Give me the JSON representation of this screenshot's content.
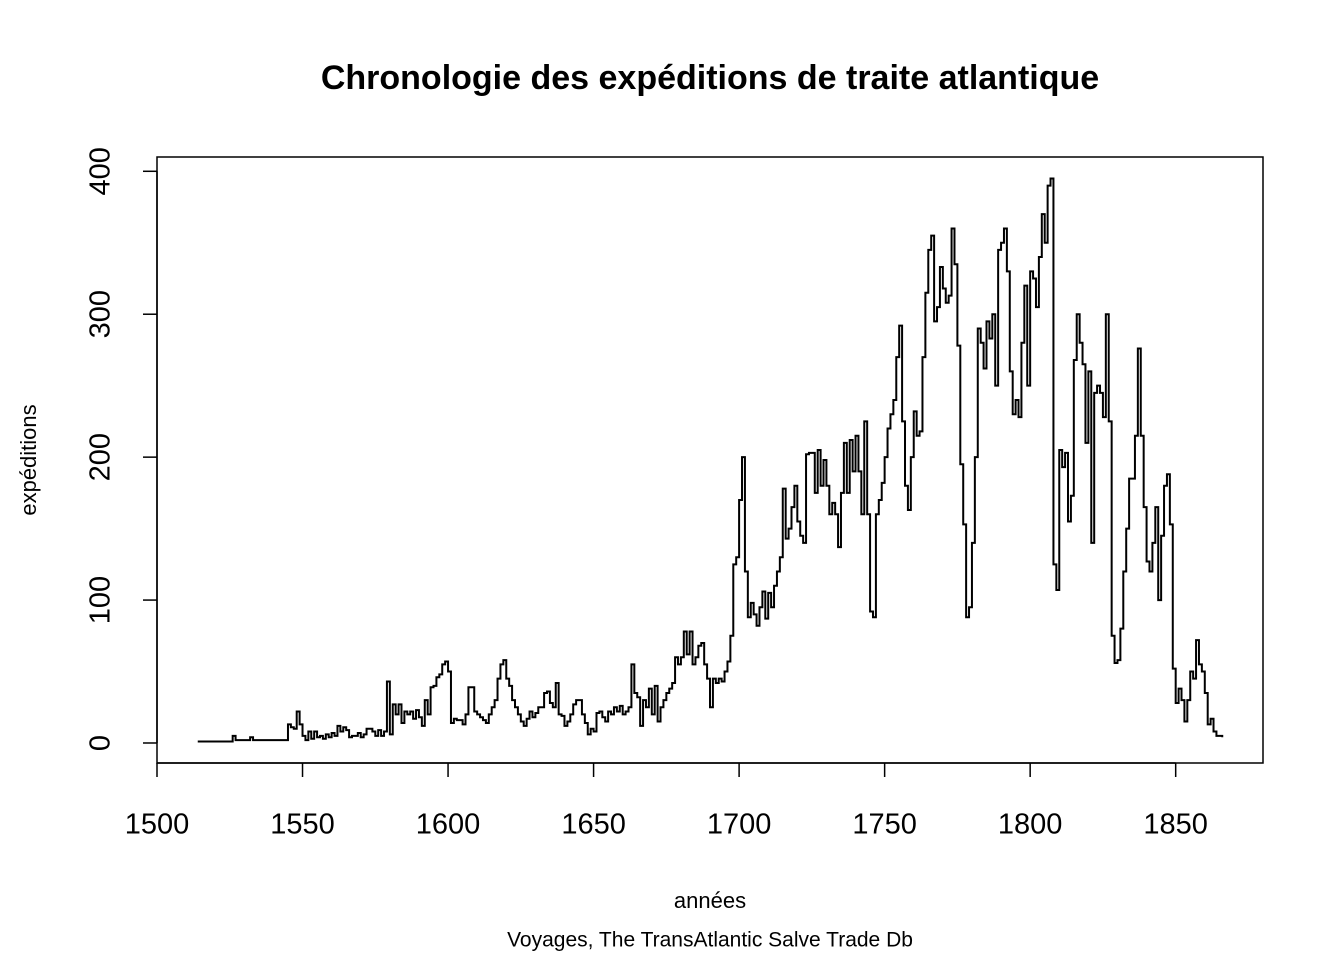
{
  "chart_data": {
    "type": "step",
    "title": "Chronologie des expéditions de traite atlantique",
    "x_label": "années",
    "y_label": "expéditions",
    "caption": "Voyages, The TransAtlantic Salve Trade Db",
    "color": "#000000",
    "xlim": [
      1500,
      1880
    ],
    "ylim": [
      -14,
      410
    ],
    "xticks": [
      1500,
      1550,
      1600,
      1650,
      1700,
      1750,
      1800,
      1850
    ],
    "yticks": [
      0,
      100,
      200,
      300,
      400
    ],
    "x": [
      1514,
      1515,
      1516,
      1517,
      1518,
      1519,
      1520,
      1521,
      1522,
      1523,
      1524,
      1525,
      1526,
      1527,
      1528,
      1529,
      1530,
      1531,
      1532,
      1533,
      1534,
      1535,
      1536,
      1537,
      1538,
      1539,
      1540,
      1541,
      1542,
      1543,
      1544,
      1545,
      1546,
      1547,
      1548,
      1549,
      1550,
      1551,
      1552,
      1553,
      1554,
      1555,
      1556,
      1557,
      1558,
      1559,
      1560,
      1561,
      1562,
      1563,
      1564,
      1565,
      1566,
      1567,
      1568,
      1569,
      1570,
      1571,
      1572,
      1573,
      1574,
      1575,
      1576,
      1577,
      1578,
      1579,
      1580,
      1581,
      1582,
      1583,
      1584,
      1585,
      1586,
      1587,
      1588,
      1589,
      1590,
      1591,
      1592,
      1593,
      1594,
      1595,
      1596,
      1597,
      1598,
      1599,
      1600,
      1601,
      1602,
      1603,
      1604,
      1605,
      1606,
      1607,
      1608,
      1609,
      1610,
      1611,
      1612,
      1613,
      1614,
      1615,
      1616,
      1617,
      1618,
      1619,
      1620,
      1621,
      1622,
      1623,
      1624,
      1625,
      1626,
      1627,
      1628,
      1629,
      1630,
      1631,
      1632,
      1633,
      1634,
      1635,
      1636,
      1637,
      1638,
      1639,
      1640,
      1641,
      1642,
      1643,
      1644,
      1645,
      1646,
      1647,
      1648,
      1649,
      1650,
      1651,
      1652,
      1653,
      1654,
      1655,
      1656,
      1657,
      1658,
      1659,
      1660,
      1661,
      1662,
      1663,
      1664,
      1665,
      1666,
      1667,
      1668,
      1669,
      1670,
      1671,
      1672,
      1673,
      1674,
      1675,
      1676,
      1677,
      1678,
      1679,
      1680,
      1681,
      1682,
      1683,
      1684,
      1685,
      1686,
      1687,
      1688,
      1689,
      1690,
      1691,
      1692,
      1693,
      1694,
      1695,
      1696,
      1697,
      1698,
      1699,
      1700,
      1701,
      1702,
      1703,
      1704,
      1705,
      1706,
      1707,
      1708,
      1709,
      1710,
      1711,
      1712,
      1713,
      1714,
      1715,
      1716,
      1717,
      1718,
      1719,
      1720,
      1721,
      1722,
      1723,
      1724,
      1725,
      1726,
      1727,
      1728,
      1729,
      1730,
      1731,
      1732,
      1733,
      1734,
      1735,
      1736,
      1737,
      1738,
      1739,
      1740,
      1741,
      1742,
      1743,
      1744,
      1745,
      1746,
      1747,
      1748,
      1749,
      1750,
      1751,
      1752,
      1753,
      1754,
      1755,
      1756,
      1757,
      1758,
      1759,
      1760,
      1761,
      1762,
      1763,
      1764,
      1765,
      1766,
      1767,
      1768,
      1769,
      1770,
      1771,
      1772,
      1773,
      1774,
      1775,
      1776,
      1777,
      1778,
      1779,
      1780,
      1781,
      1782,
      1783,
      1784,
      1785,
      1786,
      1787,
      1788,
      1789,
      1790,
      1791,
      1792,
      1793,
      1794,
      1795,
      1796,
      1797,
      1798,
      1799,
      1800,
      1801,
      1802,
      1803,
      1804,
      1805,
      1806,
      1807,
      1808,
      1809,
      1810,
      1811,
      1812,
      1813,
      1814,
      1815,
      1816,
      1817,
      1818,
      1819,
      1820,
      1821,
      1822,
      1823,
      1824,
      1825,
      1826,
      1827,
      1828,
      1829,
      1830,
      1831,
      1832,
      1833,
      1834,
      1835,
      1836,
      1837,
      1838,
      1839,
      1840,
      1841,
      1842,
      1843,
      1844,
      1845,
      1846,
      1847,
      1848,
      1849,
      1850,
      1851,
      1852,
      1853,
      1854,
      1855,
      1856,
      1857,
      1858,
      1859,
      1860,
      1861,
      1862,
      1863,
      1864,
      1865,
      1866
    ],
    "values": [
      1,
      1,
      1,
      1,
      1,
      1,
      1,
      1,
      1,
      1,
      1,
      1,
      5,
      2,
      2,
      2,
      2,
      2,
      4,
      2,
      2,
      2,
      2,
      2,
      2,
      2,
      2,
      2,
      2,
      2,
      2,
      13,
      11,
      10,
      22,
      13,
      5,
      2,
      8,
      3,
      8,
      4,
      5,
      3,
      6,
      4,
      7,
      5,
      12,
      8,
      11,
      9,
      4,
      5,
      5,
      7,
      4,
      6,
      10,
      10,
      8,
      5,
      9,
      5,
      8,
      43,
      6,
      27,
      20,
      27,
      14,
      22,
      20,
      22,
      17,
      23,
      18,
      12,
      30,
      20,
      39,
      40,
      46,
      48,
      55,
      57,
      50,
      14,
      17,
      16,
      16,
      13,
      20,
      39,
      39,
      22,
      20,
      18,
      16,
      14,
      20,
      25,
      30,
      45,
      55,
      58,
      45,
      40,
      30,
      25,
      20,
      15,
      12,
      17,
      22,
      18,
      21,
      25,
      25,
      35,
      36,
      28,
      25,
      42,
      20,
      19,
      12,
      15,
      20,
      27,
      30,
      30,
      20,
      14,
      6,
      10,
      8,
      21,
      22,
      18,
      15,
      22,
      20,
      25,
      22,
      26,
      20,
      22,
      25,
      55,
      35,
      32,
      12,
      30,
      25,
      38,
      20,
      40,
      15,
      25,
      30,
      35,
      38,
      42,
      60,
      55,
      60,
      78,
      62,
      78,
      55,
      60,
      68,
      70,
      55,
      45,
      25,
      45,
      42,
      45,
      43,
      50,
      57,
      75,
      125,
      130,
      170,
      200,
      120,
      88,
      98,
      90,
      82,
      95,
      106,
      87,
      105,
      95,
      110,
      120,
      130,
      178,
      143,
      150,
      165,
      180,
      155,
      145,
      140,
      202,
      203,
      203,
      175,
      205,
      180,
      198,
      180,
      160,
      168,
      160,
      137,
      175,
      210,
      175,
      212,
      190,
      215,
      190,
      160,
      225,
      160,
      92,
      88,
      160,
      170,
      182,
      200,
      220,
      230,
      240,
      270,
      292,
      225,
      180,
      163,
      200,
      232,
      215,
      218,
      270,
      315,
      345,
      355,
      295,
      305,
      333,
      318,
      308,
      313,
      360,
      335,
      278,
      195,
      153,
      88,
      95,
      140,
      200,
      290,
      280,
      262,
      295,
      283,
      300,
      250,
      345,
      350,
      360,
      330,
      260,
      230,
      240,
      228,
      280,
      320,
      250,
      330,
      325,
      305,
      340,
      370,
      350,
      390,
      395,
      125,
      107,
      205,
      193,
      203,
      155,
      173,
      268,
      300,
      280,
      265,
      210,
      260,
      140,
      245,
      250,
      245,
      228,
      300,
      225,
      75,
      56,
      58,
      80,
      120,
      150,
      185,
      185,
      215,
      276,
      215,
      165,
      127,
      120,
      140,
      165,
      100,
      145,
      180,
      188,
      153,
      52,
      28,
      38,
      30,
      15,
      30,
      50,
      45,
      72,
      55,
      50,
      35,
      13,
      17,
      8,
      5,
      5,
      4
    ]
  }
}
